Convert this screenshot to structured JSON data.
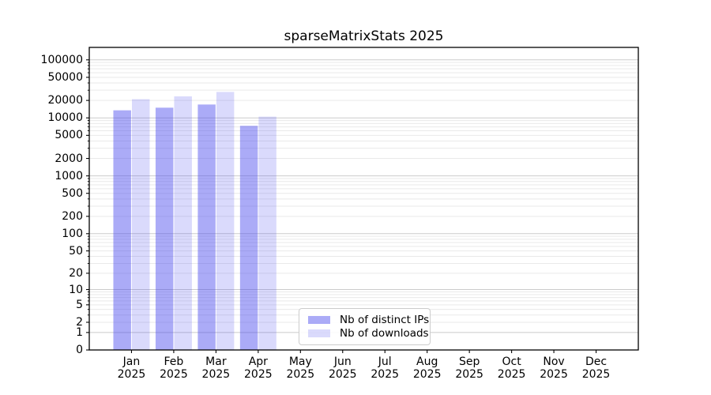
{
  "chart_data": {
    "type": "bar",
    "title": "sparseMatrixStats 2025",
    "categories": [
      "Jan 2025",
      "Feb 2025",
      "Mar 2025",
      "Apr 2025",
      "May 2025",
      "Jun 2025",
      "Jul 2025",
      "Aug 2025",
      "Sep 2025",
      "Oct 2025",
      "Nov 2025",
      "Dec 2025"
    ],
    "series": [
      {
        "name": "Nb of distinct IPs",
        "color": "rgba(68,68,238,0.45)",
        "values": [
          13500,
          15000,
          17000,
          7300,
          0,
          0,
          0,
          0,
          0,
          0,
          0,
          0
        ]
      },
      {
        "name": "Nb of downloads",
        "color": "rgba(68,68,238,0.20)",
        "values": [
          21000,
          23500,
          28000,
          10500,
          0,
          0,
          0,
          0,
          0,
          0,
          0,
          0
        ]
      }
    ],
    "yscale": "log1p",
    "yticks": [
      0,
      1,
      2,
      5,
      10,
      20,
      50,
      100,
      200,
      500,
      1000,
      2000,
      5000,
      10000,
      20000,
      50000,
      100000
    ],
    "ylim": [
      0,
      164000
    ],
    "xlim": [
      -1,
      12
    ],
    "grid": {
      "major_color": "#cbcbcb",
      "minor_color": "#e9e9e9"
    },
    "axis_color": "#000000",
    "legend_position": "lower-center-inside",
    "xlabel": "",
    "ylabel": ""
  }
}
